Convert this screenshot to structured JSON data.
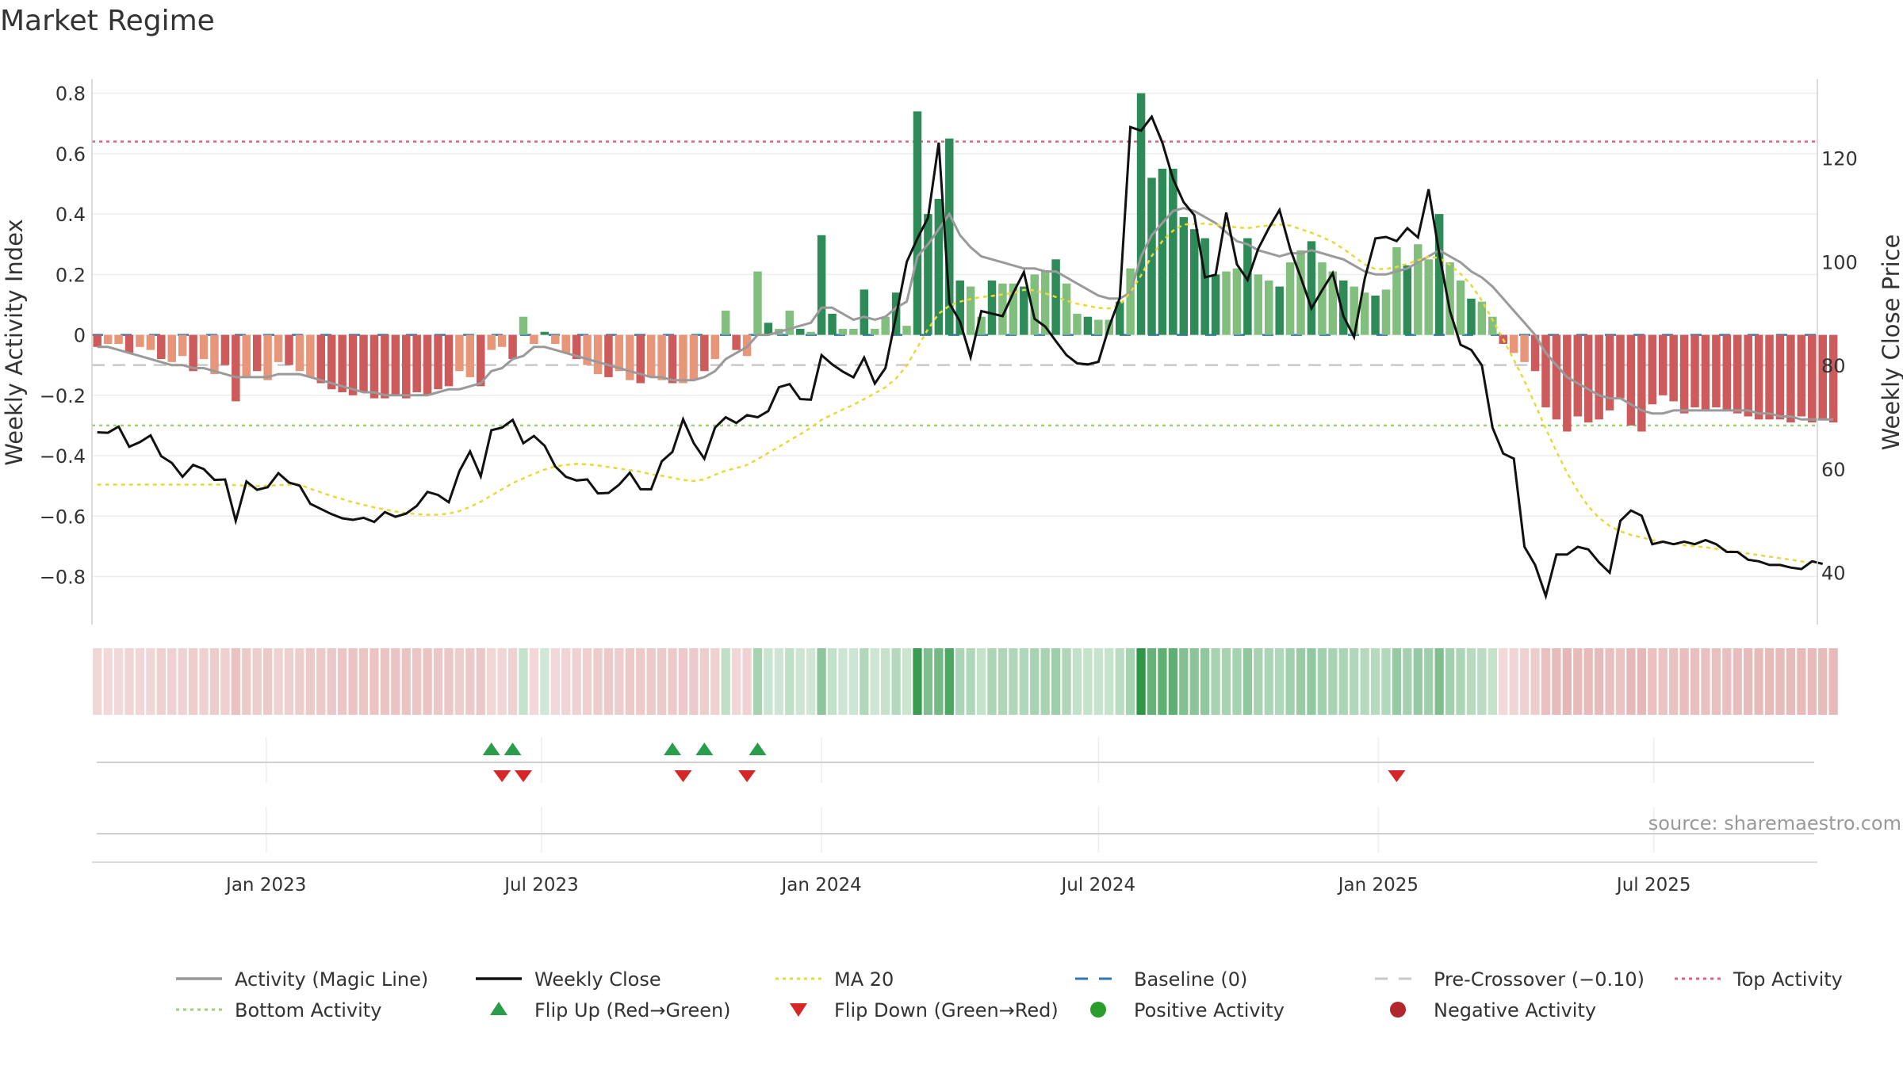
{
  "chart_data": {
    "type": "bar",
    "title": "Market Regime",
    "ylabel_left": "Weekly Activity Index",
    "ylabel_right": "Weekly Close Price",
    "source": "source: sharemaestro.com",
    "y_left_ticks": [
      "0.8",
      "0.6",
      "0.4",
      "0.2",
      "0",
      "−0.2",
      "−0.4",
      "−0.6",
      "−0.8"
    ],
    "y_right_ticks": [
      "120",
      "100",
      "80",
      "60",
      "40"
    ],
    "x_ticks": [
      "Jan 2023",
      "Jul 2023",
      "Jan 2024",
      "Jul 2024",
      "Jan 2025",
      "Jul 2025"
    ],
    "ylim_left": [
      -0.88,
      0.82
    ],
    "ylim_right": [
      34.6,
      133.7
    ],
    "top_activity": 0.64,
    "bottom_activity": -0.3,
    "pre_crossover": -0.1,
    "start_date": "2022-09-12",
    "week_count": 162,
    "activity": [
      -0.04,
      -0.03,
      -0.03,
      -0.06,
      -0.04,
      -0.05,
      -0.08,
      -0.09,
      -0.07,
      -0.12,
      -0.08,
      -0.13,
      -0.1,
      -0.22,
      -0.14,
      -0.12,
      -0.15,
      -0.09,
      -0.1,
      -0.12,
      -0.14,
      -0.16,
      -0.18,
      -0.19,
      -0.2,
      -0.19,
      -0.21,
      -0.21,
      -0.2,
      -0.21,
      -0.19,
      -0.2,
      -0.18,
      -0.17,
      -0.12,
      -0.14,
      -0.17,
      -0.05,
      -0.04,
      -0.08,
      0.06,
      -0.03,
      0.01,
      -0.03,
      -0.06,
      -0.08,
      -0.1,
      -0.13,
      -0.14,
      -0.12,
      -0.15,
      -0.16,
      -0.14,
      -0.15,
      -0.16,
      -0.16,
      -0.15,
      -0.12,
      -0.08,
      0.08,
      -0.05,
      -0.07,
      0.21,
      0.04,
      0.02,
      0.08,
      0.02,
      0.01,
      0.33,
      0.07,
      0.02,
      0.02,
      0.15,
      0.02,
      0.06,
      0.14,
      0.03,
      0.74,
      0.4,
      0.45,
      0.65,
      0.18,
      0.16,
      0.06,
      0.18,
      0.17,
      0.17,
      0.16,
      0.2,
      0.21,
      0.25,
      0.17,
      0.07,
      0.06,
      0.05,
      0.05,
      0.11,
      0.22,
      0.8,
      0.52,
      0.55,
      0.55,
      0.39,
      0.35,
      0.32,
      0.2,
      0.21,
      0.22,
      0.32,
      0.2,
      0.18,
      0.16,
      0.24,
      0.28,
      0.31,
      0.24,
      0.21,
      0.18,
      0.16,
      0.14,
      0.13,
      0.15,
      0.29,
      0.23,
      0.3,
      0.25,
      0.4,
      0.24,
      0.18,
      0.12,
      0.11,
      0.06,
      -0.03,
      -0.06,
      -0.09,
      -0.12,
      -0.24,
      -0.28,
      -0.32,
      -0.27,
      -0.29,
      -0.28,
      -0.25,
      -0.21,
      -0.3,
      -0.32,
      -0.23,
      -0.2,
      -0.22,
      -0.26,
      -0.24,
      -0.25,
      -0.24,
      -0.25,
      -0.26,
      -0.27,
      -0.28,
      -0.28,
      -0.28,
      -0.29,
      -0.27,
      -0.29,
      -0.28,
      -0.29
    ],
    "magic_line": [
      -0.04,
      -0.04,
      -0.05,
      -0.06,
      -0.07,
      -0.08,
      -0.09,
      -0.1,
      -0.1,
      -0.11,
      -0.11,
      -0.12,
      -0.13,
      -0.14,
      -0.14,
      -0.14,
      -0.14,
      -0.13,
      -0.13,
      -0.13,
      -0.14,
      -0.15,
      -0.16,
      -0.17,
      -0.18,
      -0.19,
      -0.19,
      -0.2,
      -0.2,
      -0.2,
      -0.2,
      -0.2,
      -0.19,
      -0.18,
      -0.18,
      -0.17,
      -0.16,
      -0.12,
      -0.11,
      -0.08,
      -0.07,
      -0.04,
      -0.04,
      -0.05,
      -0.06,
      -0.07,
      -0.08,
      -0.09,
      -0.1,
      -0.11,
      -0.12,
      -0.13,
      -0.14,
      -0.14,
      -0.15,
      -0.15,
      -0.15,
      -0.14,
      -0.12,
      -0.08,
      -0.06,
      -0.04,
      0.0,
      0.0,
      0.01,
      0.02,
      0.03,
      0.04,
      0.09,
      0.09,
      0.07,
      0.05,
      0.06,
      0.05,
      0.06,
      0.09,
      0.11,
      0.26,
      0.3,
      0.35,
      0.4,
      0.33,
      0.29,
      0.26,
      0.25,
      0.24,
      0.23,
      0.22,
      0.22,
      0.21,
      0.21,
      0.19,
      0.17,
      0.15,
      0.13,
      0.12,
      0.12,
      0.14,
      0.26,
      0.33,
      0.37,
      0.41,
      0.42,
      0.41,
      0.39,
      0.37,
      0.34,
      0.31,
      0.3,
      0.28,
      0.27,
      0.26,
      0.27,
      0.27,
      0.28,
      0.27,
      0.26,
      0.25,
      0.23,
      0.21,
      0.2,
      0.2,
      0.21,
      0.22,
      0.24,
      0.26,
      0.28,
      0.26,
      0.24,
      0.21,
      0.19,
      0.16,
      0.12,
      0.08,
      0.04,
      0.0,
      -0.06,
      -0.1,
      -0.14,
      -0.16,
      -0.18,
      -0.2,
      -0.21,
      -0.21,
      -0.23,
      -0.25,
      -0.26,
      -0.26,
      -0.25,
      -0.25,
      -0.25,
      -0.25,
      -0.25,
      -0.25,
      -0.25,
      -0.25,
      -0.26,
      -0.26,
      -0.27,
      -0.27,
      -0.28,
      -0.28,
      -0.28,
      -0.28
    ],
    "weekly_close": [
      67.1,
      67.0,
      68.2,
      64.3,
      65.2,
      66.5,
      62.5,
      61.2,
      58.5,
      60.8,
      60.0,
      57.9,
      58.0,
      50.0,
      57.6,
      56.0,
      56.5,
      59.2,
      57.4,
      56.8,
      53.3,
      52.3,
      51.3,
      50.5,
      50.2,
      50.6,
      49.8,
      51.7,
      50.8,
      51.4,
      52.9,
      55.6,
      55.0,
      53.6,
      59.6,
      63.4,
      58.6,
      67.5,
      68.0,
      69.5,
      65.0,
      66.4,
      64.5,
      60.5,
      58.5,
      57.8,
      58.0,
      55.3,
      55.4,
      57.0,
      59.3,
      56.1,
      56.1,
      61.5,
      63.3,
      69.6,
      65.0,
      62.0,
      68.0,
      70.0,
      68.9,
      70.4,
      70.0,
      71.2,
      75.8,
      76.4,
      73.5,
      73.4,
      82.0,
      80.2,
      78.8,
      77.7,
      81.5,
      76.5,
      79.5,
      89.5,
      100.0,
      104.5,
      108.5,
      123.0,
      92.0,
      88.5,
      81.6,
      90.5,
      90.0,
      89.5,
      94.0,
      98.0,
      89.0,
      87.5,
      84.7,
      82.0,
      80.4,
      80.2,
      80.7,
      87.5,
      93.0,
      126.0,
      125.3,
      128.0,
      123.0,
      116.0,
      111.5,
      109.0,
      97.0,
      97.5,
      109.5,
      99.5,
      96.5,
      102.5,
      106.5,
      110.0,
      102.5,
      97.0,
      91.0,
      94.5,
      97.8,
      89.5,
      85.5,
      96.7,
      104.5,
      104.8,
      104.0,
      106.5,
      104.7,
      114.0,
      101.5,
      90.5,
      84.0,
      83.0,
      80.0,
      68.0,
      63.0,
      62.0,
      45.0,
      41.5,
      35.5,
      43.5,
      43.5,
      45.0,
      44.5,
      42.0,
      40.0,
      50.0,
      52.0,
      51.0,
      45.5,
      46.0,
      45.5,
      46.0,
      45.5,
      46.3,
      45.5,
      44.0,
      44.0,
      42.5,
      42.2,
      41.5,
      41.5,
      41.0,
      40.7,
      42.2,
      41.7
    ],
    "ma20": [
      57.0,
      57.0,
      57.0,
      57.0,
      57.0,
      57.0,
      57.0,
      57.0,
      57.0,
      57.0,
      57.0,
      57.0,
      57.0,
      56.9,
      56.8,
      56.7,
      56.8,
      56.9,
      57.0,
      57.0,
      56.2,
      55.5,
      54.8,
      54.2,
      53.6,
      53.1,
      52.6,
      52.2,
      51.8,
      51.5,
      51.3,
      51.2,
      51.2,
      51.4,
      51.9,
      52.7,
      53.7,
      54.9,
      56.1,
      57.3,
      58.2,
      59.1,
      59.9,
      60.5,
      60.8,
      61.0,
      60.9,
      60.7,
      60.4,
      60.1,
      59.8,
      59.5,
      59.0,
      58.7,
      58.3,
      57.9,
      57.7,
      58.0,
      58.9,
      59.7,
      60.2,
      60.8,
      61.9,
      63.1,
      64.3,
      65.5,
      66.7,
      68.0,
      69.5,
      70.5,
      71.5,
      72.4,
      73.5,
      74.6,
      75.8,
      77.5,
      80.0,
      83.5,
      87.0,
      90.0,
      91.5,
      92.3,
      92.8,
      93.2,
      93.4,
      93.7,
      94.0,
      94.6,
      94.5,
      93.9,
      93.2,
      92.5,
      91.9,
      91.5,
      91.1,
      91.0,
      91.7,
      94.1,
      97.4,
      101.1,
      104.0,
      106.0,
      107.2,
      107.3,
      107.4,
      107.1,
      107.0,
      106.6,
      106.5,
      106.8,
      107.0,
      107.2,
      107.0,
      106.3,
      105.6,
      104.8,
      103.8,
      102.5,
      101.0,
      99.5,
      98.6,
      98.6,
      99.0,
      99.6,
      100.3,
      101.0,
      100.7,
      99.4,
      97.7,
      95.5,
      92.5,
      88.8,
      85.0,
      81.1,
      77.0,
      72.5,
      67.8,
      63.4,
      59.3,
      55.8,
      52.8,
      50.6,
      49.0,
      48.0,
      47.3,
      46.8,
      46.3,
      45.9,
      45.6,
      45.3,
      45.1,
      44.9,
      44.6,
      44.3,
      44.0,
      43.7,
      43.4,
      43.1,
      42.8,
      42.5,
      42.2,
      41.9
    ],
    "flip_up_weeks": [
      37,
      39,
      54,
      57,
      62
    ],
    "flip_down_weeks": [
      38,
      40,
      55,
      61,
      122
    ],
    "legend": [
      {
        "label": "Activity (Magic Line)",
        "kind": "line",
        "color": "#999999"
      },
      {
        "label": "Weekly Close",
        "kind": "line",
        "color": "#111111"
      },
      {
        "label": "MA 20",
        "kind": "dotted",
        "color": "#e8d83a"
      },
      {
        "label": "Baseline (0)",
        "kind": "dashed",
        "color": "#2f77b4"
      },
      {
        "label": "Pre-Crossover (−0.10)",
        "kind": "dashed",
        "color": "#c9c9c9"
      },
      {
        "label": "Top Activity",
        "kind": "dotted",
        "color": "#e0607e"
      },
      {
        "label": "Bottom Activity",
        "kind": "dotted",
        "color": "#9ed07a"
      },
      {
        "label": "Flip Up (Red→Green)",
        "kind": "triangle-up",
        "color": "#2a9d4a"
      },
      {
        "label": "Flip Down (Green→Red)",
        "kind": "triangle-down",
        "color": "#d62728"
      },
      {
        "label": "Positive Activity",
        "kind": "dot",
        "color": "#2a9d2a"
      },
      {
        "label": "Negative Activity",
        "kind": "dot",
        "color": "#b2262e"
      }
    ]
  },
  "colors": {
    "pos_strong": "#2e8b57",
    "pos_light": "#82bf7e",
    "neg_strong": "#cd5b5b",
    "neg_light": "#e8967a"
  }
}
